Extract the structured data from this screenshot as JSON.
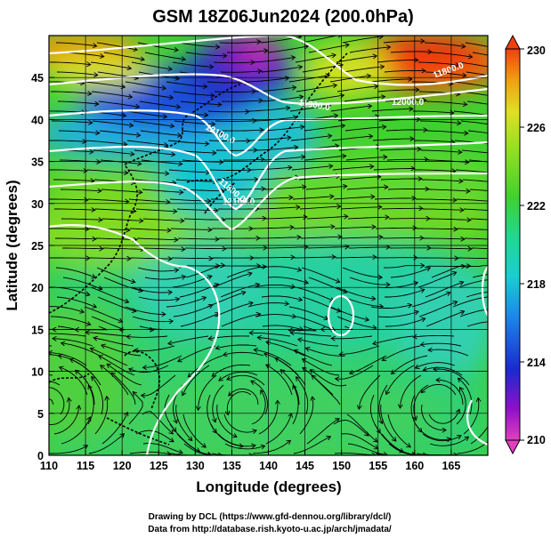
{
  "title": "GSM 18Z06Jun2024 (200.0hPa)",
  "chart_data": {
    "type": "heatmap",
    "xlabel": "Longitude (degrees)",
    "ylabel": "Latitude  (degrees)",
    "xlim": [
      110,
      170
    ],
    "ylim": [
      0,
      50
    ],
    "x_ticks": [
      "110",
      "115",
      "120",
      "125",
      "130",
      "135",
      "140",
      "145",
      "150",
      "155",
      "160",
      "165"
    ],
    "y_ticks": [
      "0",
      "5",
      "10",
      "15",
      "20",
      "25",
      "30",
      "35",
      "40",
      "45"
    ],
    "colorbar": {
      "ticks": [
        "210",
        "214",
        "218",
        "222",
        "226",
        "230"
      ],
      "min": 210,
      "max": 230,
      "colors": [
        "#e040c0",
        "#8000c0",
        "#1a2ad0",
        "#1c8ae8",
        "#18d0d0",
        "#20d890",
        "#40d030",
        "#90e020",
        "#e0e020",
        "#f0a010",
        "#f04010"
      ]
    },
    "contour_labels": [
      "12100.0",
      "11800.0",
      "11900.0",
      "12000.0",
      "11800.0",
      "12100.0"
    ],
    "streamlines": true,
    "grid": true
  },
  "credits": {
    "line1": "Drawing by DCL (https://www.gfd-dennou.org/library/dcl/)",
    "line2": "Data from http://database.rish.kyoto-u.ac.jp/arch/jmadata/"
  }
}
